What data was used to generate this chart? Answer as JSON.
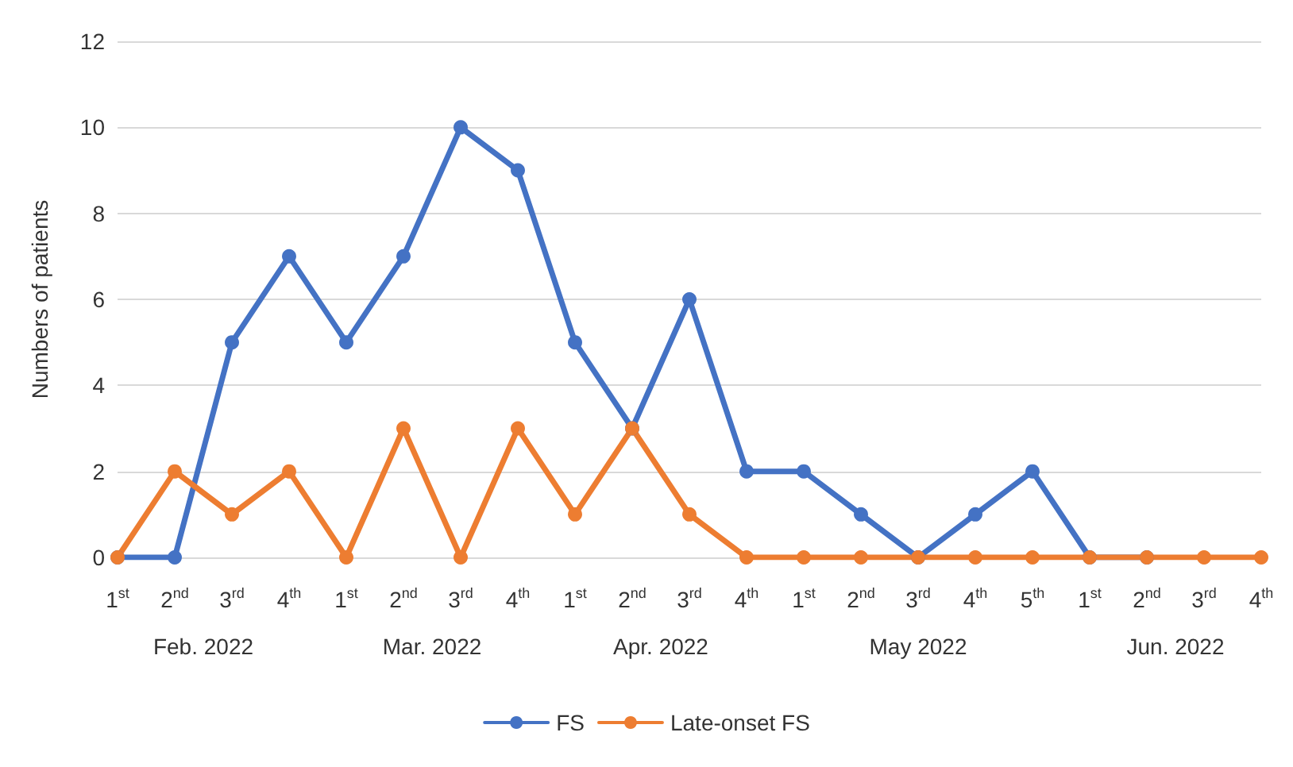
{
  "chart_data": {
    "type": "line",
    "ylabel": "Numbers of patients",
    "categories": [
      "1$^{st}$",
      "2$^{nd}$",
      "3$^{rd}$",
      "4$^{th}$",
      "1$^{st}$",
      "2$^{nd}$",
      "3$^{rd}$",
      "4$^{th}$",
      "1$^{st}$",
      "2$^{nd}$",
      "3$^{rd}$",
      "4$^{th}$",
      "1$^{st}$",
      "2$^{nd}$",
      "3$^{rd}$",
      "4$^{th}$",
      "5$^{th}$",
      "1$^{st}$",
      "2$^{nd}$",
      "3$^{rd}$",
      "4$^{th}$"
    ],
    "annotations": [
      "Feb. 2022",
      "Mar. 2022",
      "Apr. 2022",
      "May 2022",
      "Jun. 2022"
    ],
    "series": [
      {
        "name": "FS",
        "color": "#4472c4",
        "values": [
          0,
          0,
          5,
          7,
          5,
          7,
          10,
          9,
          5,
          3,
          6,
          2,
          2,
          1,
          0,
          1,
          2,
          0,
          0,
          null,
          null
        ]
      },
      {
        "name": "Late-onset FS",
        "color": "#ed7d31",
        "values": [
          0,
          2,
          1,
          2,
          0,
          3,
          0,
          3,
          1,
          3,
          1,
          0,
          0,
          0,
          0,
          0,
          0,
          0,
          0,
          0,
          0
        ]
      }
    ],
    "ylim": [
      0,
      12
    ],
    "yticks": [
      0,
      2,
      4,
      6,
      8,
      10,
      12
    ],
    "grid": "y",
    "legend": "bottom",
    "marker": "circle",
    "line_style": "solid"
  }
}
